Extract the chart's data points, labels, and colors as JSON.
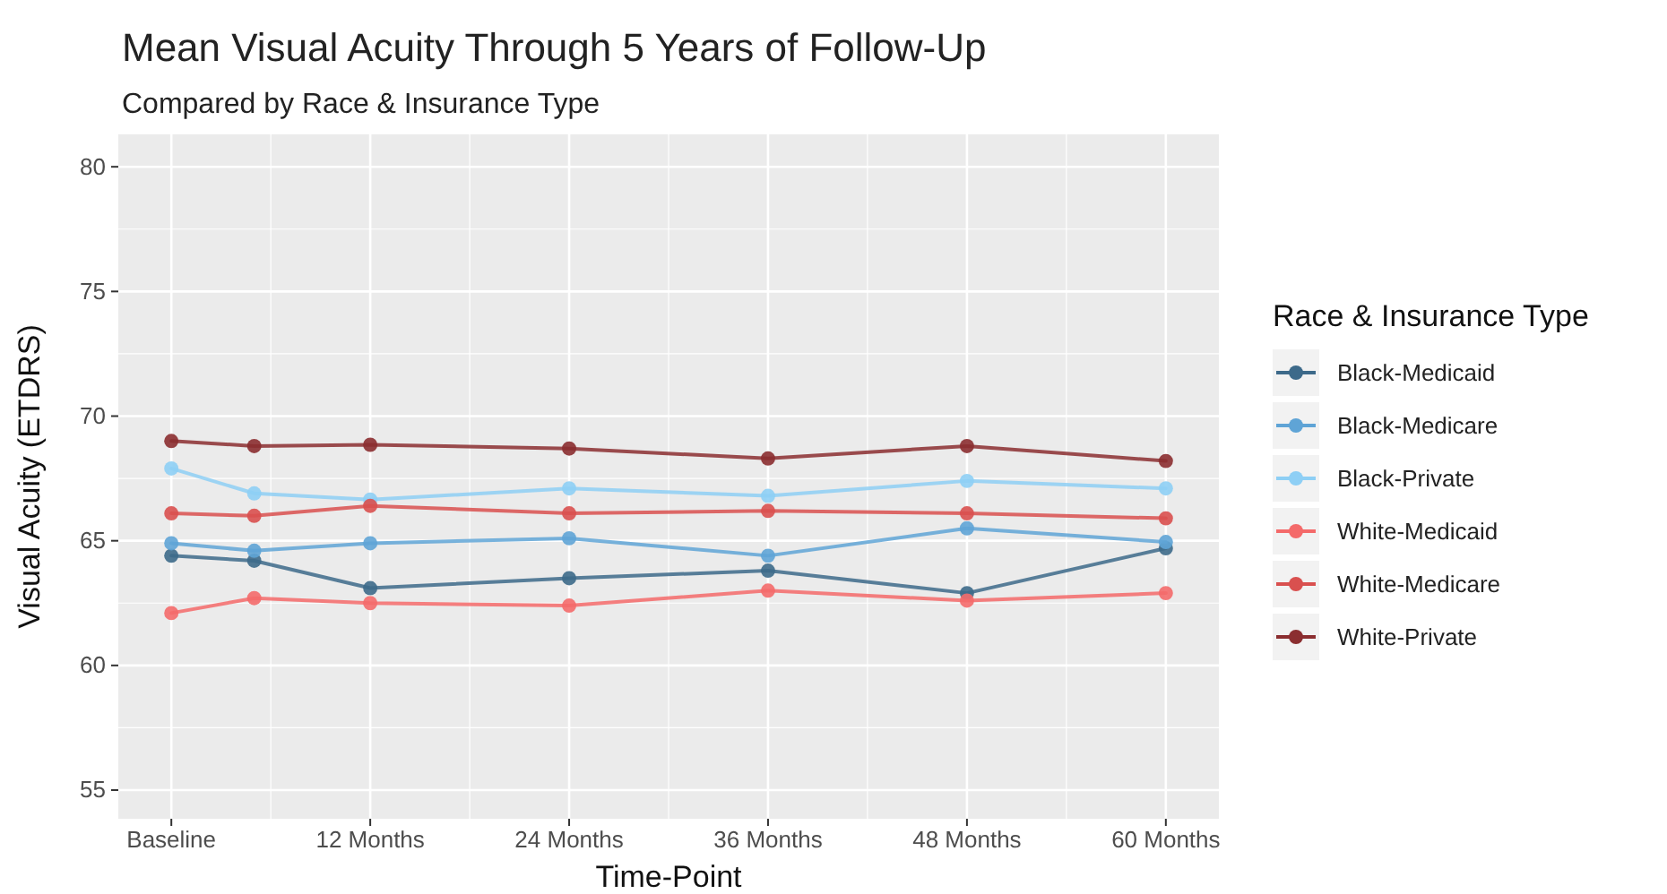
{
  "chart_data": {
    "type": "line",
    "title": "Mean Visual Acuity Through 5 Years of Follow-Up",
    "subtitle": "Compared by Race & Insurance Type",
    "xlabel": "Time-Point",
    "ylabel": "Visual Acuity (ETDRS)",
    "legend_title": "Race & Insurance Type",
    "x": [
      0,
      5,
      12,
      24,
      36,
      48,
      60
    ],
    "xlim": [
      -3.2,
      63.2
    ],
    "xticks": [
      {
        "value": 0,
        "label": "Baseline"
      },
      {
        "value": 12,
        "label": "12 Months"
      },
      {
        "value": 24,
        "label": "24 Months"
      },
      {
        "value": 36,
        "label": "36 Months"
      },
      {
        "value": 48,
        "label": "48 Months"
      },
      {
        "value": 60,
        "label": "60 Months"
      }
    ],
    "ylim": [
      53.85,
      81.3
    ],
    "yticks": [
      55,
      60,
      65,
      70,
      75,
      80
    ],
    "grid": true,
    "legend": "right",
    "marker": "circle",
    "line_style": "solid",
    "series": [
      {
        "name": "Black-Medicaid",
        "color": "#3d6a8a",
        "values": [
          64.4,
          64.2,
          63.1,
          63.5,
          63.8,
          62.9,
          64.7
        ]
      },
      {
        "name": "Black-Medicare",
        "color": "#5fa4d6",
        "values": [
          64.9,
          64.6,
          64.9,
          65.1,
          64.4,
          65.5,
          64.95
        ]
      },
      {
        "name": "Black-Private",
        "color": "#8ecff5",
        "values": [
          67.9,
          66.9,
          66.65,
          67.1,
          66.8,
          67.4,
          67.1
        ]
      },
      {
        "name": "White-Medicaid",
        "color": "#f46a6a",
        "values": [
          62.1,
          62.7,
          62.5,
          62.4,
          63.0,
          62.6,
          62.9
        ]
      },
      {
        "name": "White-Medicare",
        "color": "#d9504f",
        "values": [
          66.1,
          66.0,
          66.4,
          66.1,
          66.2,
          66.1,
          65.9
        ]
      },
      {
        "name": "White-Private",
        "color": "#8b2e30",
        "values": [
          69.0,
          68.8,
          68.85,
          68.7,
          68.3,
          68.8,
          68.2
        ]
      }
    ]
  }
}
